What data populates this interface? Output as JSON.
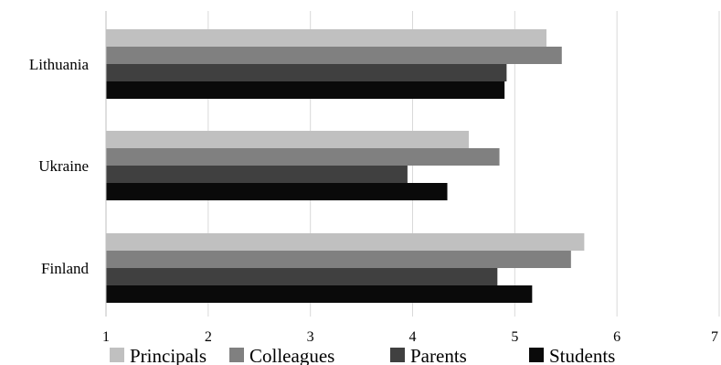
{
  "chart_data": {
    "type": "bar",
    "orientation": "horizontal",
    "title": "",
    "xlabel": "",
    "ylabel": "",
    "categories": [
      "Lithuania",
      "Ukraine",
      "Finland"
    ],
    "series": [
      {
        "name": "Principals",
        "color": "#c0c0c0",
        "values": [
          5.31,
          4.55,
          5.68
        ]
      },
      {
        "name": "Colleagues",
        "color": "#808080",
        "values": [
          5.46,
          4.85,
          5.55
        ]
      },
      {
        "name": "Parents",
        "color": "#404040",
        "values": [
          4.92,
          3.95,
          4.83
        ]
      },
      {
        "name": "Students",
        "color": "#0a0a0a",
        "values": [
          4.9,
          4.34,
          5.17
        ]
      }
    ],
    "xlim": [
      1,
      7
    ],
    "xticks": [
      "1",
      "2",
      "3",
      "4",
      "5",
      "6",
      "7"
    ],
    "grid": "vertical",
    "legend_position": "bottom"
  }
}
